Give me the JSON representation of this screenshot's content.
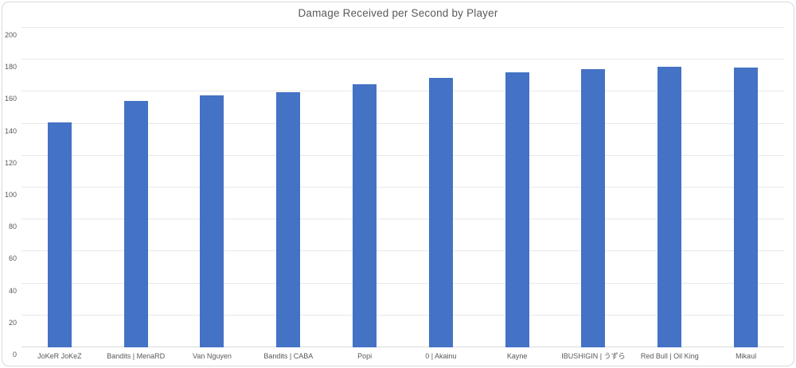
{
  "chart_data": {
    "type": "bar",
    "title": "Damage Received per Second by Player",
    "categories": [
      "JoKeR JoKeZ",
      "Bandits | MenaRD",
      "Van Nguyen",
      "Bandits | CABA",
      "Popi",
      "0 | Akainu",
      "Kayne",
      "IBUSHIGIN | うずら",
      "Red Bull | Oil King",
      "Mikaul"
    ],
    "values": [
      141,
      154,
      157.5,
      159.5,
      164.5,
      168.5,
      172,
      174,
      175.5,
      175
    ],
    "xlabel": "",
    "ylabel": "",
    "ylim": [
      0,
      200
    ],
    "ytick_step": 20,
    "ytick_labels": [
      "0",
      "20",
      "40",
      "60",
      "80",
      "100",
      "120",
      "140",
      "160",
      "180",
      "200"
    ],
    "grid": true,
    "legend_position": "none",
    "colors": {
      "bar": "#4472C4",
      "gridline": "#E8E8E8",
      "axis_line": "#D9D9D9",
      "text": "#595959",
      "frame_border": "#D9D9D9",
      "background": "#FFFFFF"
    }
  }
}
